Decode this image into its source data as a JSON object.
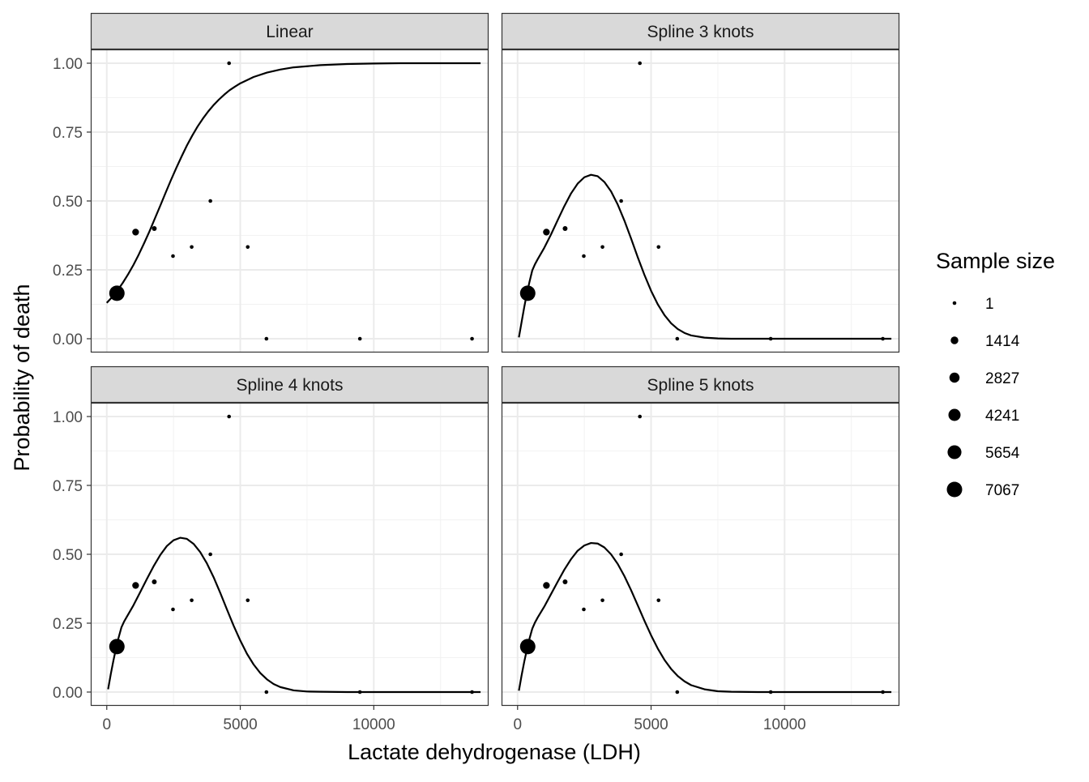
{
  "chart_data": {
    "type": "scatter",
    "xlabel": "Lactate dehydrogenase (LDH)",
    "ylabel": "Probability of death",
    "xlim": [
      -600,
      14300
    ],
    "ylim": [
      -0.05,
      1.05
    ],
    "x_ticks": [
      0,
      5000,
      10000
    ],
    "x_tick_labels": [
      "0",
      "5000",
      "10000"
    ],
    "y_ticks": [
      0,
      0.25,
      0.5,
      0.75,
      1.0
    ],
    "y_tick_labels": [
      "0.00",
      "0.25",
      "0.50",
      "0.75",
      "1.00"
    ],
    "grid": true,
    "legend": {
      "title": "Sample size",
      "position": "right",
      "labels": [
        "1",
        "1414",
        "2827",
        "4241",
        "5654",
        "7067"
      ],
      "values": [
        1,
        1414,
        2827,
        4241,
        5654,
        7067
      ]
    },
    "points": {
      "x": [
        380,
        1080,
        1780,
        2480,
        3180,
        3880,
        4580,
        5280,
        5980,
        9480,
        13680
      ],
      "y": [
        0.165,
        0.387,
        0.4,
        0.3,
        0.333,
        0.5,
        1.0,
        0.333,
        0.0,
        0.0,
        0.0
      ],
      "size": [
        7067,
        1000,
        300,
        1,
        1,
        1,
        1,
        1,
        1,
        1,
        1
      ]
    },
    "panels": [
      {
        "title": "Linear",
        "curve": {
          "x": [
            0,
            200,
            400,
            600,
            800,
            1000,
            1200,
            1400,
            1600,
            1800,
            2000,
            2200,
            2400,
            2600,
            2800,
            3000,
            3200,
            3400,
            3600,
            3800,
            4000,
            4200,
            4400,
            4600,
            4800,
            5000,
            5500,
            6000,
            6500,
            7000,
            8000,
            9000,
            10000,
            11000,
            12000,
            13000,
            14000
          ],
          "y": [
            0.13,
            0.151,
            0.175,
            0.203,
            0.234,
            0.268,
            0.306,
            0.347,
            0.39,
            0.436,
            0.482,
            0.529,
            0.575,
            0.619,
            0.661,
            0.701,
            0.737,
            0.77,
            0.799,
            0.825,
            0.848,
            0.868,
            0.886,
            0.902,
            0.915,
            0.927,
            0.95,
            0.966,
            0.977,
            0.985,
            0.993,
            0.997,
            0.999,
            1.0,
            1.0,
            1.0,
            1.0
          ]
        }
      },
      {
        "title": "Spline 3 knots",
        "curve": {
          "x": [
            50,
            150,
            250,
            350,
            450,
            550,
            650,
            750,
            1000,
            1250,
            1500,
            1750,
            2000,
            2250,
            2500,
            2750,
            3000,
            3250,
            3500,
            3750,
            4000,
            4250,
            4500,
            4750,
            5000,
            5250,
            5500,
            5750,
            6000,
            6250,
            6500,
            7000,
            7500,
            8000,
            9000,
            10000,
            11000,
            12000,
            13000,
            14000
          ],
          "y": [
            0.005,
            0.06,
            0.115,
            0.165,
            0.208,
            0.248,
            0.27,
            0.288,
            0.33,
            0.378,
            0.43,
            0.481,
            0.527,
            0.563,
            0.586,
            0.595,
            0.59,
            0.569,
            0.535,
            0.487,
            0.429,
            0.364,
            0.296,
            0.232,
            0.174,
            0.125,
            0.086,
            0.056,
            0.035,
            0.021,
            0.012,
            0.004,
            0.001,
            0.0,
            0.0,
            0.0,
            0.0,
            0.0,
            0.0,
            0.0
          ]
        }
      },
      {
        "title": "Spline 4 knots",
        "curve": {
          "x": [
            50,
            150,
            250,
            350,
            450,
            550,
            650,
            750,
            1000,
            1250,
            1500,
            1750,
            2000,
            2250,
            2500,
            2750,
            3000,
            3250,
            3500,
            3750,
            4000,
            4250,
            4500,
            4750,
            5000,
            5250,
            5500,
            5750,
            6000,
            6250,
            6500,
            7000,
            7500,
            8000,
            9000,
            10000,
            11000,
            12000,
            13000,
            14000
          ],
          "y": [
            0.01,
            0.065,
            0.115,
            0.16,
            0.2,
            0.235,
            0.256,
            0.273,
            0.315,
            0.362,
            0.41,
            0.456,
            0.497,
            0.53,
            0.551,
            0.56,
            0.556,
            0.538,
            0.508,
            0.467,
            0.417,
            0.36,
            0.3,
            0.241,
            0.187,
            0.139,
            0.1,
            0.069,
            0.046,
            0.029,
            0.018,
            0.006,
            0.002,
            0.001,
            0.0,
            0.0,
            0.0,
            0.0,
            0.0,
            0.0
          ]
        }
      },
      {
        "title": "Spline 5 knots",
        "curve": {
          "x": [
            50,
            150,
            250,
            350,
            450,
            550,
            650,
            750,
            1000,
            1250,
            1500,
            1750,
            2000,
            2250,
            2500,
            2750,
            3000,
            3250,
            3500,
            3750,
            4000,
            4250,
            4500,
            4750,
            5000,
            5250,
            5500,
            5750,
            6000,
            6250,
            6500,
            7000,
            7500,
            8000,
            9000,
            10000,
            11000,
            12000,
            13000,
            14000
          ],
          "y": [
            0.005,
            0.06,
            0.11,
            0.155,
            0.195,
            0.23,
            0.252,
            0.27,
            0.31,
            0.355,
            0.4,
            0.444,
            0.482,
            0.513,
            0.532,
            0.541,
            0.539,
            0.525,
            0.5,
            0.465,
            0.421,
            0.37,
            0.315,
            0.259,
            0.206,
            0.158,
            0.117,
            0.084,
            0.058,
            0.039,
            0.025,
            0.01,
            0.003,
            0.001,
            0.0,
            0.0,
            0.0,
            0.0,
            0.0,
            0.0
          ]
        }
      }
    ]
  }
}
